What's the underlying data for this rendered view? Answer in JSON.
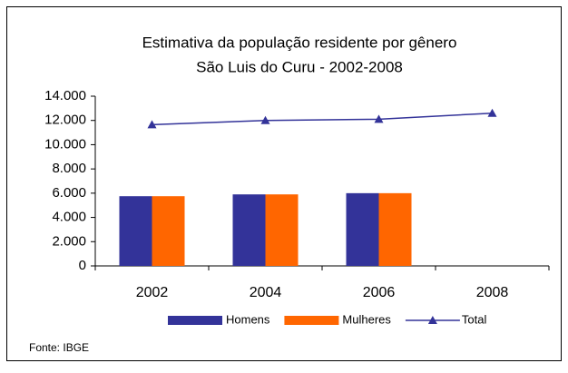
{
  "chart_data": {
    "type": "bar-line",
    "title": "Estimativa da população residente por gênero",
    "subtitle": "São  Luis do Curu -  2002-2008",
    "source": "Fonte: IBGE",
    "categories": [
      "2002",
      "2004",
      "2006",
      "2008"
    ],
    "series": [
      {
        "name": "Homens",
        "color": "#333399",
        "type": "bar",
        "values": [
          5750,
          5900,
          6000,
          null
        ]
      },
      {
        "name": "Mulheres",
        "color": "#ff6600",
        "type": "bar",
        "values": [
          5750,
          5900,
          6000,
          null
        ]
      },
      {
        "name": "Total",
        "color": "#333399",
        "type": "line",
        "values": [
          11650,
          12000,
          12100,
          12600
        ]
      }
    ],
    "ylim": [
      0,
      14000
    ],
    "yticks": [
      0,
      {
        "value": 2000,
        "label": "2.000"
      },
      {
        "value": 4000,
        "label": "4.000"
      },
      {
        "value": 6000,
        "label": "6.000"
      },
      {
        "value": 8000,
        "label": "8.000"
      },
      {
        "value": 10000,
        "label": "10.000"
      },
      {
        "value": 12000,
        "label": "12.000"
      },
      {
        "value": 14000,
        "label": "14.000"
      }
    ],
    "grid": false,
    "legend": "bottom"
  }
}
